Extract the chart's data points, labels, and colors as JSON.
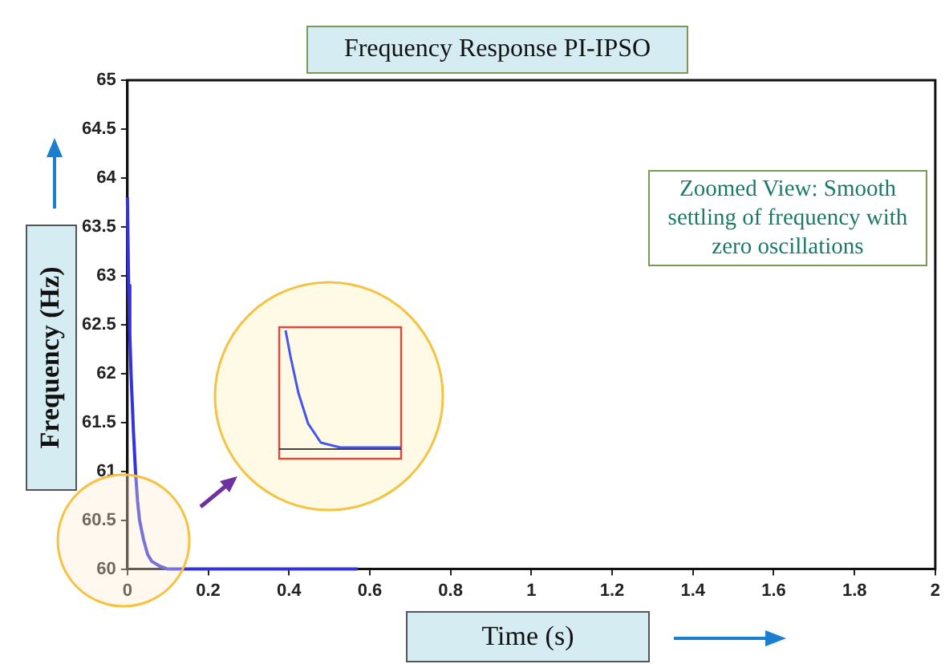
{
  "chart_data": {
    "type": "line",
    "title": "Frequency Response PI-IPSO",
    "xlabel": "Time (s)",
    "ylabel": "Frequency (Hz)",
    "annotations": [
      "Zoomed View: Smooth settling of frequency with zero oscillations"
    ],
    "series": [
      {
        "color": "#3333dd",
        "x": [
          0,
          0.003,
          0.006,
          0.009,
          0.012,
          0.015,
          0.02,
          0.025,
          0.03,
          0.04,
          0.05,
          0.06,
          0.08,
          0.1,
          0.2,
          0.3,
          0.4,
          0.57
        ],
        "values": [
          63.8,
          62.9,
          62.4,
          62.0,
          61.7,
          61.4,
          61.0,
          60.7,
          60.5,
          60.3,
          60.15,
          60.08,
          60.03,
          60,
          60,
          60,
          60,
          60
        ]
      }
    ],
    "xlim": [
      0,
      2
    ],
    "xticks": [
      0,
      0.2,
      0.4,
      0.6,
      0.8,
      1,
      1.2,
      1.4,
      1.6,
      1.8,
      2
    ],
    "ylim": [
      60,
      65
    ],
    "yticks": [
      60,
      60.5,
      61,
      61.5,
      62,
      62.5,
      63,
      63.5,
      64,
      64.5,
      65
    ],
    "grid": false,
    "legend": false,
    "marker": "none",
    "line_style": "solid"
  }
}
